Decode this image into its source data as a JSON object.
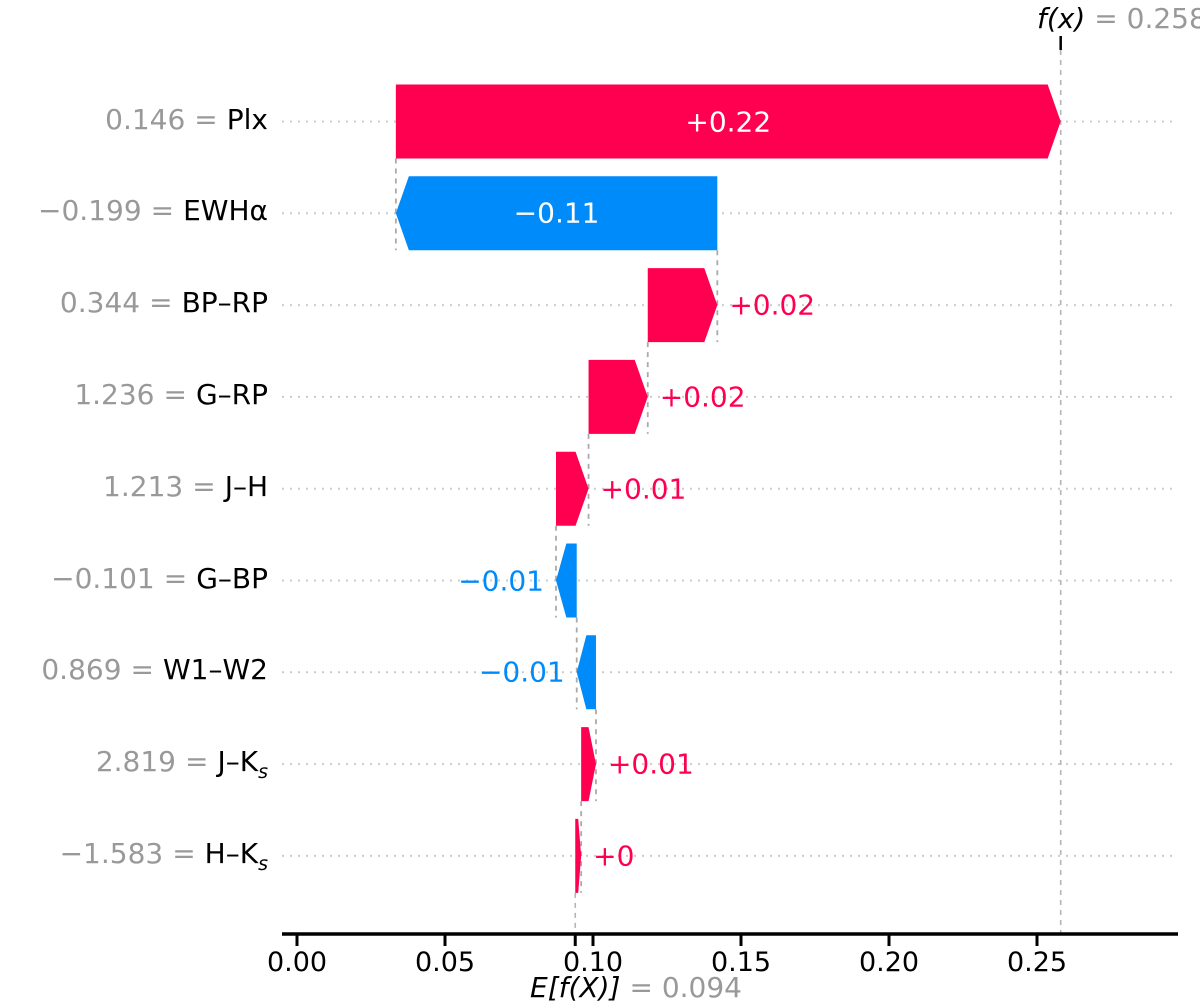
{
  "figure": {
    "background": "#ffffff"
  },
  "chart_data": {
    "type": "waterfall",
    "title": "",
    "fx_annotation": {
      "expr": "f(x)",
      "eq": "=",
      "value": "0.258"
    },
    "base_annotation": {
      "expr": "E[f(X)]",
      "eq": "=",
      "value": "0.094"
    },
    "fx_value": 0.258,
    "base_value": 0.094,
    "eq_sign": "=",
    "x_tick_values": [
      0.0,
      0.05,
      0.1,
      0.15,
      0.2,
      0.25
    ],
    "x_tick_labels": [
      "0.00",
      "0.05",
      "0.10",
      "0.15",
      "0.20",
      "0.25"
    ],
    "xlim": [
      -0.005,
      0.298
    ],
    "grid": "dotted-horizontal",
    "colors": {
      "positive": "#ff0051",
      "negative": "#008bfb",
      "inside_label_text": "#ffffff",
      "feature_value_text": "#999999",
      "feature_name_text": "#000000",
      "axis": "#000000",
      "connector": "#aaaaaa",
      "ref_line": "#b5b5b5",
      "grid": "#cccccc"
    },
    "rows": [
      {
        "feature": "Plx",
        "feature_sub": "",
        "feature_value": "0.146",
        "shap": 0.2246,
        "shap_label": "+0.22",
        "label_placement": "inside"
      },
      {
        "feature": "EWHα",
        "feature_sub": "",
        "feature_value": "−0.199",
        "shap": -0.1086,
        "shap_label": "−0.11",
        "label_placement": "inside"
      },
      {
        "feature": "BP–RP",
        "feature_sub": "",
        "feature_value": "0.344",
        "shap": 0.0235,
        "shap_label": "+0.02",
        "label_placement": "right"
      },
      {
        "feature": "G–RP",
        "feature_sub": "",
        "feature_value": "1.236",
        "shap": 0.02,
        "shap_label": "+0.02",
        "label_placement": "right"
      },
      {
        "feature": "J–H",
        "feature_sub": "",
        "feature_value": "1.213",
        "shap": 0.011,
        "shap_label": "+0.01",
        "label_placement": "right"
      },
      {
        "feature": "G–BP",
        "feature_sub": "",
        "feature_value": "−0.101",
        "shap": -0.007,
        "shap_label": "−0.01",
        "label_placement": "left"
      },
      {
        "feature": "W1–W2",
        "feature_sub": "",
        "feature_value": "0.869",
        "shap": -0.0065,
        "shap_label": "−0.01",
        "label_placement": "left"
      },
      {
        "feature": "J–K",
        "feature_sub": "s",
        "feature_value": "2.819",
        "shap": 0.005,
        "shap_label": "+0.01",
        "label_placement": "right"
      },
      {
        "feature": "H–K",
        "feature_sub": "s",
        "feature_value": "−1.583",
        "shap": 0.002,
        "shap_label": "+0",
        "label_placement": "right"
      }
    ]
  }
}
